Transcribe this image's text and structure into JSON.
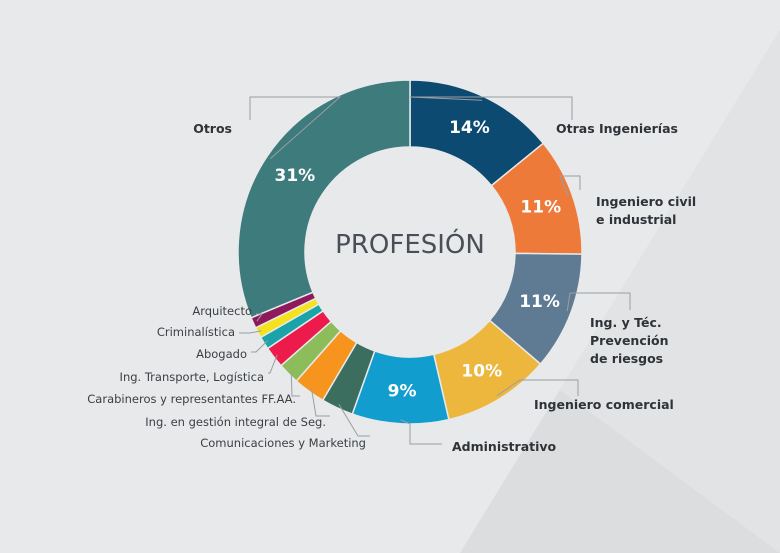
{
  "chart_data": {
    "type": "pie",
    "donut": true,
    "title": "PROFESIÓN",
    "slices": [
      {
        "label": "Otras Ingenierías",
        "value": 14,
        "value_label": "14%",
        "color": "#0d4a72"
      },
      {
        "label": "Ingeniero civil e industrial",
        "label_lines": [
          "Ingeniero civil",
          "e industrial"
        ],
        "value": 11,
        "value_label": "11%",
        "color": "#ee7a3a"
      },
      {
        "label": "Ing. y Téc. Prevención de riesgos",
        "label_lines": [
          "Ing. y Téc.",
          "Prevención",
          "de riesgos"
        ],
        "value": 11,
        "value_label": "11%",
        "color": "#5f7a93"
      },
      {
        "label": "Ingeniero comercial",
        "value": 10,
        "value_label": "10%",
        "color": "#edb73e"
      },
      {
        "label": "Administrativo",
        "value": 9,
        "value_label": "9%",
        "color": "#119ecf"
      },
      {
        "label": "Comunicaciones y Marketing",
        "value": 3,
        "value_label": "",
        "color": "#3b6e5f"
      },
      {
        "label": "Ing. en gestión integral de Seg.",
        "value": 3,
        "value_label": "",
        "color": "#f7941d"
      },
      {
        "label": "Carabineros y representantes FF.AA.",
        "value": 2,
        "value_label": "",
        "color": "#8dbc5a"
      },
      {
        "label": "Ing. Transporte, Logística",
        "value": 2,
        "value_label": "",
        "color": "#ec1b4b"
      },
      {
        "label": "Abogado",
        "value": 1.2,
        "value_label": "",
        "color": "#1aa3a8"
      },
      {
        "label": "Criminalística",
        "value": 1,
        "value_label": "",
        "color": "#f4e221"
      },
      {
        "label": "Arquitecto",
        "value": 1,
        "value_label": "",
        "color": "#8e1a5c"
      },
      {
        "label": "Otros",
        "value": 31,
        "value_label": "31%",
        "color": "#3e7b7d"
      }
    ]
  }
}
